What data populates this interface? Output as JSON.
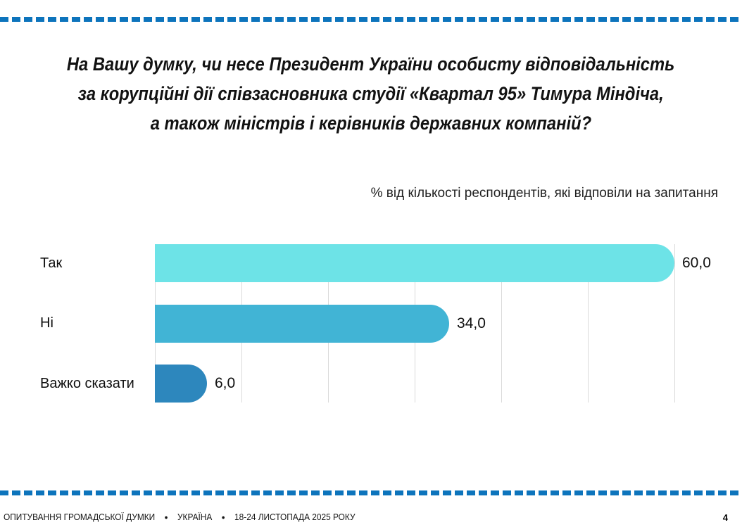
{
  "page": {
    "title_lines": [
      "На Вашу думку, чи несе Президент України особисту відповідальність",
      "за корупційні дії співзасновника студії «Квартал 95» Тимура Міндіча,",
      "а також міністрів і керівників державних компаній?"
    ],
    "subtitle": "% від кількості респондентів, які відповіли на запитання",
    "footer": {
      "survey_label": "ОПИТУВАННЯ ГРОМАДСЬКОЇ ДУМКИ",
      "separator": "●",
      "country": "УКРАЇНА",
      "date_range": "18-24 ЛИСТОПАДА 2025 РОКУ",
      "page_number": "4"
    }
  },
  "chart_data": {
    "type": "bar",
    "orientation": "horizontal",
    "title": "",
    "xlabel": "",
    "ylabel": "",
    "categories": [
      "Так",
      "Ні",
      "Важко сказати"
    ],
    "values": [
      60.0,
      34.0,
      6.0
    ],
    "value_labels": [
      "60,0",
      "34,0",
      "6,0"
    ],
    "bar_colors": [
      "#6de3e7",
      "#41b4d5",
      "#2d87bd"
    ],
    "xlim": [
      0,
      60
    ],
    "gridline_interval": 10,
    "grid": true,
    "legend": "none"
  },
  "colors": {
    "dashed_line": "#0d74bc",
    "gridline": "#dadada"
  }
}
